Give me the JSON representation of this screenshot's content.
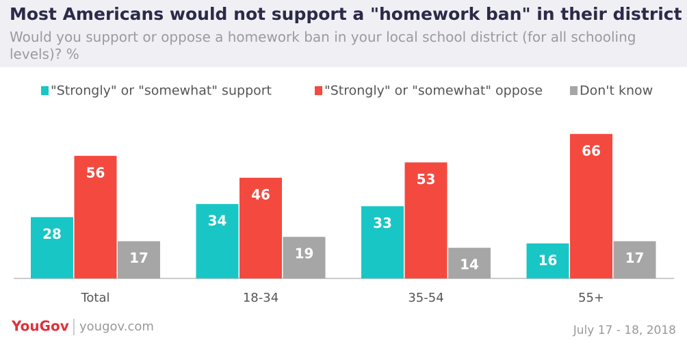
{
  "chart_data": {
    "type": "bar",
    "title": "Most Americans would not support a \"homework ban\" in their district",
    "subtitle": "Would you support or oppose a homework ban in your local school district (for all schooling levels)? %",
    "categories": [
      "Total",
      "18-34",
      "35-54",
      "55+"
    ],
    "series": [
      {
        "name": "\"Strongly\" or \"somewhat\" support",
        "color": "#19c6c6",
        "values": [
          28,
          34,
          33,
          16
        ]
      },
      {
        "name": "\"Strongly\" or \"somewhat\" oppose",
        "color": "#f4493f",
        "values": [
          56,
          46,
          53,
          66
        ]
      },
      {
        "name": "Don't know",
        "color": "#a6a6a6",
        "values": [
          17,
          19,
          14,
          17
        ]
      }
    ],
    "brand": "YouGov",
    "website": "yougov.com",
    "date": "July 17 - 18, 2018"
  }
}
